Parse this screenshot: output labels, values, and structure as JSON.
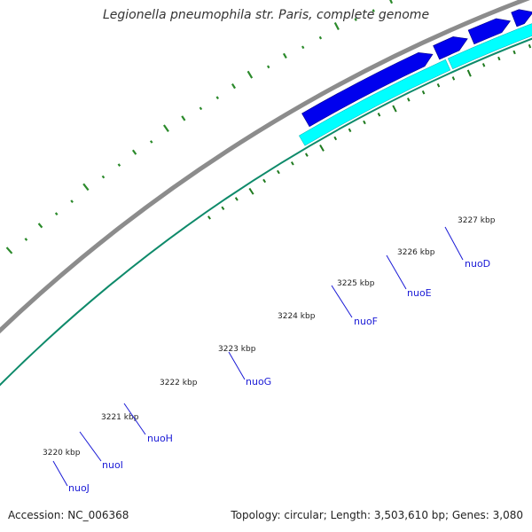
{
  "title": "Legionella pneumophila str. Paris, complete genome",
  "footer": {
    "accession": "Accession: NC_006368",
    "summary": "Topology: circular; Length: 3,503,610 bp; Genes: 3,080"
  },
  "colors": {
    "backbone": "#8c8c8c",
    "forward_gene": "#0000ee",
    "reverse_gene": "#00ffff",
    "tick": "#1f7a1f",
    "label": "#1a1ad6",
    "gc_dots": "#2b8a2b"
  },
  "ticks": [
    {
      "label": "3220 kbp"
    },
    {
      "label": "3221 kbp"
    },
    {
      "label": "3222 kbp"
    },
    {
      "label": "3223 kbp"
    },
    {
      "label": "3224 kbp"
    },
    {
      "label": "3225 kbp"
    },
    {
      "label": "3226 kbp"
    },
    {
      "label": "3227 kbp"
    }
  ],
  "genes": [
    {
      "label": "nuoJ"
    },
    {
      "label": "nuoI"
    },
    {
      "label": "nuoH"
    },
    {
      "label": "nuoG"
    },
    {
      "label": "nuoF"
    },
    {
      "label": "nuoE"
    },
    {
      "label": "nuoD"
    }
  ]
}
